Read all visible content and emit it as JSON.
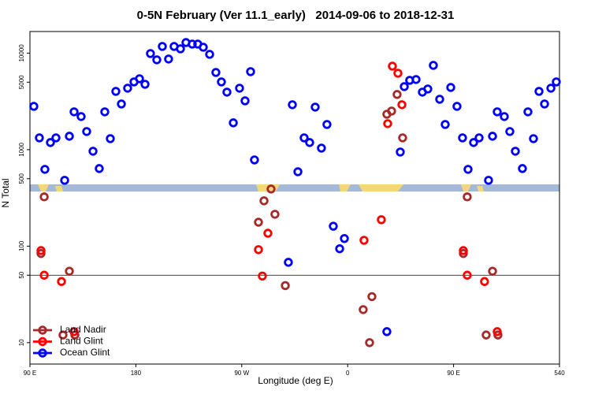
{
  "chart_data": {
    "type": "scatter",
    "title": "0-5N February (Ver 11.1_early)   2014-09-06 to 2018-12-31",
    "x_label": "Longitude (deg E)",
    "y_label": "N Total",
    "log_y": true,
    "legend": "bottom-left",
    "hline": 50,
    "xlim": [
      90,
      540
    ],
    "xticks": [
      {
        "value": 90,
        "label": "90 E"
      },
      180,
      {
        "value": 270,
        "label": "90 W"
      },
      {
        "value": 360,
        "label": "0"
      },
      {
        "value": 450,
        "label": "90 E"
      },
      540
    ],
    "ylim": [
      6,
      16750
    ],
    "yticks": [
      10,
      50,
      100,
      500,
      1000,
      5000,
      10000
    ],
    "series": [
      {
        "name": "Land Nadir",
        "color": "#a52a2a",
        "x": [
          99.4,
          102.1,
          118.1,
          123.5,
          128.2,
          284.2,
          288.9,
          294.9,
          298.2,
          307.0,
          373.2,
          378.6,
          380.6,
          393.3,
          397.3,
          402.0,
          406.7,
          458.3,
          461.6,
          477.7,
          483.1,
          487.7
        ],
        "values": [
          84,
          324,
          12,
          55,
          12,
          177,
          295,
          391,
          214,
          39,
          22,
          10,
          30,
          2330,
          2510,
          3730,
          1325,
          84,
          324,
          12,
          55,
          12
        ]
      },
      {
        "name": "Land Glint",
        "color": "#ff0000",
        "x": [
          99.4,
          102.1,
          116.8,
          127.5,
          284.2,
          287.5,
          292.2,
          373.9,
          388.6,
          394.0,
          398.0,
          402.7,
          406.1,
          458.3,
          461.6,
          476.3,
          487.1
        ],
        "values": [
          90,
          50,
          43,
          13,
          92,
          49,
          136,
          115,
          188,
          1860,
          7330,
          6190,
          2920,
          90,
          50,
          43,
          13
        ]
      },
      {
        "name": "Ocean Glint",
        "color": "#0000ff",
        "x": [
          93.3,
          98.0,
          102.7,
          107.4,
          112.1,
          119.5,
          123.5,
          127.5,
          133.5,
          138.2,
          143.6,
          148.9,
          153.6,
          158.3,
          163.0,
          167.7,
          173.0,
          178.4,
          183.1,
          187.8,
          192.4,
          197.8,
          202.5,
          207.8,
          212.5,
          217.9,
          222.6,
          227.9,
          232.6,
          237.3,
          242.7,
          248.0,
          252.7,
          257.4,
          262.8,
          268.1,
          272.8,
          277.5,
          280.8,
          309.6,
          313.0,
          317.7,
          323.0,
          327.7,
          332.4,
          337.7,
          342.4,
          347.8,
          353.2,
          357.2,
          393.3,
          404.7,
          408.1,
          412.7,
          418.1,
          423.5,
          428.1,
          432.8,
          438.2,
          442.9,
          447.6,
          452.9,
          457.6,
          462.3,
          467.0,
          471.7,
          479.7,
          483.1,
          487.1,
          493.1,
          497.8,
          502.5,
          508.5,
          513.2,
          517.9,
          522.6,
          527.3,
          532.7,
          537.3
        ],
        "values": [
          2810,
          1325,
          625,
          1185,
          1325,
          481,
          1377,
          2466,
          2203,
          1541,
          963,
          637,
          2466,
          1300,
          4018,
          2974,
          4335,
          5036,
          5431,
          4760,
          9910,
          8530,
          11730,
          8690,
          11730,
          11090,
          12880,
          12410,
          12410,
          11510,
          9720,
          6310,
          5036,
          3945,
          1897,
          4335,
          3206,
          6430,
          783,
          68,
          2920,
          590,
          1325,
          1185,
          2760,
          1038,
          1824,
          161,
          94,
          120,
          13,
          945,
          4500,
          5230,
          5330,
          3945,
          4250,
          7470,
          3330,
          1824,
          4410,
          2810,
          1325,
          625,
          1185,
          1325,
          481,
          1377,
          2466,
          2203,
          1541,
          963,
          637,
          2466,
          1300,
          4018,
          2974,
          4335,
          5036
        ]
      }
    ]
  }
}
